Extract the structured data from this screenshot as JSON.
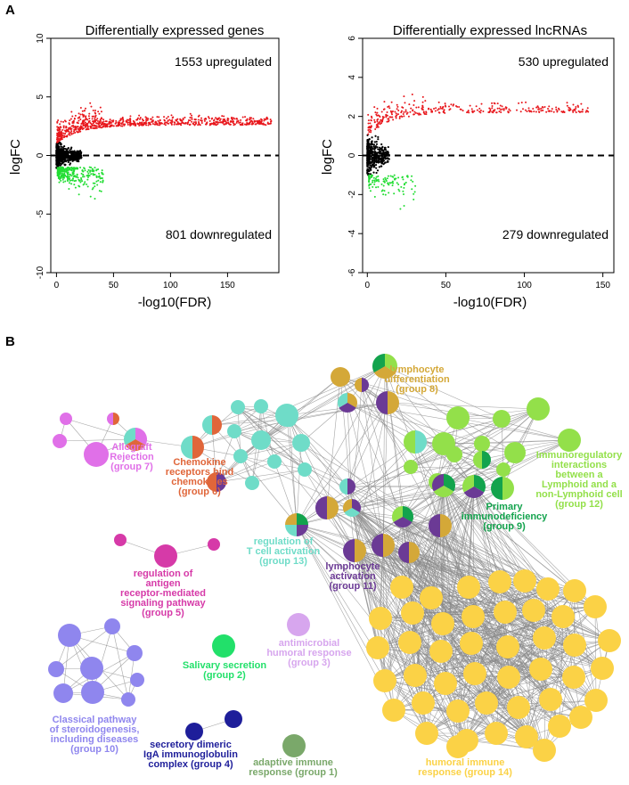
{
  "panels": {
    "a_label": "A",
    "b_label": "B"
  },
  "chart_data": [
    {
      "type": "scatter",
      "title": "Differentially expressed genes",
      "xlabel": "-log10(FDR)",
      "ylabel": "logFC",
      "xlim": [
        -5,
        195
      ],
      "ylim": [
        -10,
        10
      ],
      "xticks": [
        "0",
        "50",
        "100",
        "150"
      ],
      "yticks": [
        "-10",
        "-5",
        "0",
        "5",
        "10"
      ],
      "upregulated_label": "1553 upregulated",
      "downregulated_label": "801 downregulated",
      "up_count": 1553,
      "down_count": 801,
      "up_color": "#e8171c",
      "down_color": "#22dd33",
      "ns_color": "#000000",
      "reference_line_y": 0
    },
    {
      "type": "scatter",
      "title": "Differentially expressed lncRNAs",
      "xlabel": "-log10(FDR)",
      "ylabel": "logFC",
      "xlim": [
        -3,
        157
      ],
      "ylim": [
        -6,
        6
      ],
      "xticks": [
        "0",
        "50",
        "100",
        "150"
      ],
      "yticks": [
        "-6",
        "-4",
        "-2",
        "0",
        "2",
        "4",
        "6"
      ],
      "upregulated_label": "530 upregulated",
      "downregulated_label": "279 downregulated",
      "up_count": 530,
      "down_count": 279,
      "up_color": "#e8171c",
      "down_color": "#22dd33",
      "ns_color": "#000000",
      "reference_line_y": 0
    }
  ],
  "network": {
    "colors": {
      "g1": "#7aa86a",
      "g2": "#22e06a",
      "g3": "#d7a6ee",
      "g4": "#1e1e9a",
      "g5": "#d63aa8",
      "g6": "#e0663a",
      "g7": "#e070e8",
      "g8": "#d4a838",
      "g9": "#13a34d",
      "g10": "#8f86ee",
      "g11": "#6b3a95",
      "g12": "#93e04a",
      "g13": "#6fdcc8",
      "g14": "#fbd246",
      "edge": "#888888"
    },
    "groups": [
      {
        "key": "g8",
        "lines": [
          "lymphocyte",
          "differentiation",
          "(group 8)"
        ]
      },
      {
        "key": "g7",
        "lines": [
          "Allograft",
          "Rejection",
          "(group 7)"
        ]
      },
      {
        "key": "g6",
        "lines": [
          "Chemokine",
          "receptors bind",
          "chemokines",
          "(group 6)"
        ]
      },
      {
        "key": "g12",
        "lines": [
          "Immunoregulatory",
          "interactions",
          "between a",
          "Lymphoid and a",
          "non-Lymphoid cell",
          "(group 12)"
        ]
      },
      {
        "key": "g9",
        "lines": [
          "Primary",
          "immunodeficiency",
          "(group 9)"
        ]
      },
      {
        "key": "g13",
        "lines": [
          "regulation of",
          "T cell activation",
          "(group 13)"
        ]
      },
      {
        "key": "g11",
        "lines": [
          "lymphocyte",
          "activation",
          "(group 11)"
        ]
      },
      {
        "key": "g5",
        "lines": [
          "regulation of",
          "antigen",
          "receptor-mediated",
          "signaling pathway",
          "(group 5)"
        ]
      },
      {
        "key": "g3",
        "lines": [
          "antimicrobial",
          "humoral response",
          "(group 3)"
        ]
      },
      {
        "key": "g2",
        "lines": [
          "Salivary secretion",
          "(group 2)"
        ]
      },
      {
        "key": "g10",
        "lines": [
          "Classical pathway",
          "of steroidogenesis,",
          "including diseases",
          "(group 10)"
        ]
      },
      {
        "key": "g4",
        "lines": [
          "secretory dimeric",
          "IgA immunoglobulin",
          "complex (group 4)"
        ]
      },
      {
        "key": "g1",
        "lines": [
          "adaptive immune",
          "response (group 1)"
        ]
      },
      {
        "key": "g14",
        "lines": [
          "humoral immune",
          "response (group 14)"
        ]
      }
    ]
  }
}
